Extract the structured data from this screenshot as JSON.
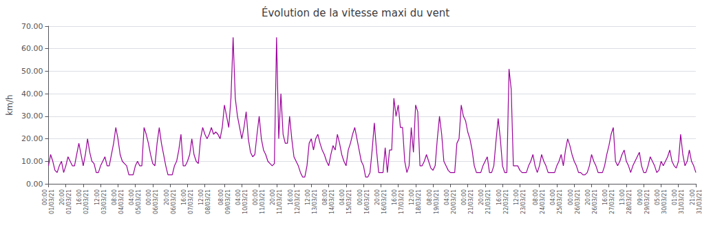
{
  "chart_data": {
    "type": "line",
    "title": "Évolution de la vitesse maxi du vent",
    "ylabel": "km/h",
    "color": "#990099",
    "grid": true,
    "ylim": [
      0.0,
      70.0
    ],
    "yticks": [
      {
        "value": 0,
        "label": "0.00"
      },
      {
        "value": 10,
        "label": "10.00"
      },
      {
        "value": 20,
        "label": "20.00"
      },
      {
        "value": 30,
        "label": "30.00"
      },
      {
        "value": 40,
        "label": "40.00"
      },
      {
        "value": 50,
        "label": "50.00"
      },
      {
        "value": 60,
        "label": "60.00"
      },
      {
        "value": 70,
        "label": "70.00"
      }
    ],
    "categories": [
      "00:00\n01/03/21",
      null,
      null,
      null,
      null,
      null,
      null,
      null,
      "20:00\n01/03/21",
      null,
      null,
      null,
      null,
      null,
      null,
      null,
      "16:00\n02/03/21",
      null,
      null,
      null,
      null,
      null,
      null,
      null,
      "12:00\n03/03/21",
      null,
      null,
      null,
      null,
      null,
      null,
      null,
      "08:00\n04/03/21",
      null,
      null,
      null,
      null,
      null,
      null,
      null,
      "04:00\n05/03/21",
      null,
      null,
      null,
      null,
      null,
      null,
      null,
      "00:00\n06/03/21",
      null,
      null,
      null,
      null,
      null,
      null,
      null,
      "20:00\n06/03/21",
      null,
      null,
      null,
      null,
      null,
      null,
      null,
      "16:00\n07/03/21",
      null,
      null,
      null,
      null,
      null,
      null,
      null,
      "12:00\n08/03/21",
      null,
      null,
      null,
      null,
      null,
      null,
      null,
      null,
      "08:00\n09/03/21",
      null,
      null,
      null,
      null,
      null,
      null,
      null,
      "04:00\n10/03/21",
      null,
      null,
      null,
      null,
      null,
      null,
      null,
      "00:00\n11/03/21",
      null,
      null,
      null,
      null,
      null,
      null,
      null,
      "20:00\n11/03/21",
      null,
      null,
      null,
      null,
      null,
      null,
      null,
      "16:00\n12/03/21",
      null,
      null,
      null,
      null,
      null,
      null,
      null,
      "12:00\n13/03/21",
      null,
      null,
      null,
      null,
      null,
      null,
      null,
      "08:00\n14/03/21",
      null,
      null,
      null,
      null,
      null,
      null,
      null,
      "04:00\n15/03/21",
      null,
      null,
      null,
      null,
      null,
      null,
      null,
      "00:00\n16/03/21",
      null,
      null,
      null,
      null,
      null,
      null,
      null,
      "20:00\n16/03/21",
      null,
      null,
      null,
      null,
      null,
      null,
      null,
      "16:00\n17/03/21",
      null,
      null,
      null,
      null,
      null,
      null,
      null,
      "12:00\n18/03/21",
      null,
      null,
      null,
      null,
      null,
      null,
      null,
      "08:00\n19/03/21",
      null,
      null,
      null,
      null,
      null,
      null,
      null,
      "04:00\n20/03/21",
      null,
      null,
      null,
      null,
      null,
      null,
      null,
      "00:00\n21/03/21",
      null,
      null,
      null,
      null,
      null,
      null,
      null,
      "20:00\n21/03/21",
      null,
      null,
      null,
      null,
      null,
      null,
      null,
      "16:00\n22/03/21",
      null,
      null,
      null,
      null,
      null,
      null,
      null,
      "12:00\n23/03/21",
      null,
      null,
      null,
      null,
      null,
      null,
      null,
      null,
      "08:00\n24/03/21",
      null,
      null,
      null,
      null,
      null,
      null,
      null,
      "04:00\n25/03/21",
      null,
      null,
      null,
      null,
      null,
      null,
      null,
      "00:00\n26/03/21",
      null,
      null,
      null,
      null,
      null,
      null,
      null,
      "20:00\n26/03/21",
      null,
      null,
      null,
      null,
      null,
      null,
      null,
      "16:00\n27/03/21",
      null,
      null,
      null,
      null,
      null,
      null,
      null,
      "13:00\n28/03/21",
      null,
      null,
      null,
      null,
      null,
      null,
      null,
      "09:00\n29/03/21",
      null,
      null,
      null,
      null,
      null,
      null,
      null,
      "05:00\n30/03/21",
      null,
      null,
      null,
      null,
      null,
      null,
      null,
      "01:00\n31/03/21",
      null,
      null,
      null,
      null,
      null,
      null,
      null,
      "21:00\n31/03/21"
    ],
    "values": [
      8,
      13,
      10,
      6,
      5,
      8,
      10,
      5,
      8,
      12,
      10,
      8,
      8,
      13,
      18,
      13,
      8,
      13,
      20,
      14,
      10,
      9,
      5,
      5,
      8,
      10,
      12,
      8,
      8,
      13,
      18,
      25,
      20,
      13,
      10,
      9,
      8,
      4,
      4,
      4,
      8,
      10,
      8,
      8,
      25,
      22,
      18,
      13,
      9,
      8,
      18,
      25,
      18,
      13,
      8,
      4,
      4,
      4,
      8,
      10,
      15,
      22,
      8,
      8,
      10,
      13,
      20,
      13,
      10,
      9,
      20,
      25,
      22,
      20,
      22,
      25,
      22,
      23,
      22,
      20,
      25,
      35,
      30,
      25,
      38,
      65,
      38,
      30,
      25,
      20,
      25,
      32,
      20,
      14,
      12,
      13,
      22,
      30,
      20,
      15,
      13,
      10,
      9,
      8,
      9,
      65,
      20,
      40,
      22,
      18,
      18,
      30,
      20,
      12,
      10,
      8,
      5,
      3,
      3,
      8,
      18,
      20,
      15,
      20,
      22,
      18,
      15,
      13,
      10,
      8,
      13,
      17,
      15,
      22,
      18,
      13,
      10,
      8,
      15,
      18,
      22,
      25,
      20,
      15,
      10,
      8,
      3,
      3,
      5,
      15,
      27,
      15,
      5,
      5,
      5,
      16,
      5,
      15,
      15,
      38,
      30,
      35,
      25,
      25,
      10,
      5,
      8,
      25,
      14,
      35,
      32,
      8,
      8,
      10,
      13,
      10,
      7,
      6,
      8,
      20,
      30,
      22,
      10,
      8,
      6,
      5,
      5,
      5,
      18,
      20,
      35,
      30,
      28,
      23,
      20,
      15,
      8,
      5,
      5,
      5,
      8,
      10,
      12,
      5,
      5,
      8,
      19,
      29,
      20,
      8,
      5,
      5,
      51,
      42,
      8,
      8,
      8,
      6,
      5,
      5,
      5,
      8,
      10,
      13,
      8,
      5,
      8,
      13,
      10,
      8,
      5,
      5,
      5,
      5,
      8,
      10,
      13,
      8,
      15,
      20,
      17,
      13,
      10,
      8,
      5,
      5,
      4,
      4,
      5,
      8,
      13,
      10,
      8,
      5,
      5,
      5,
      8,
      13,
      17,
      22,
      25,
      10,
      8,
      10,
      13,
      15,
      10,
      8,
      5,
      8,
      10,
      12,
      14,
      8,
      5,
      5,
      8,
      12,
      10,
      8,
      5,
      6,
      10,
      8,
      10,
      12,
      15,
      10,
      8,
      7,
      10,
      22,
      13,
      8,
      10,
      15,
      10,
      8,
      5
    ]
  }
}
